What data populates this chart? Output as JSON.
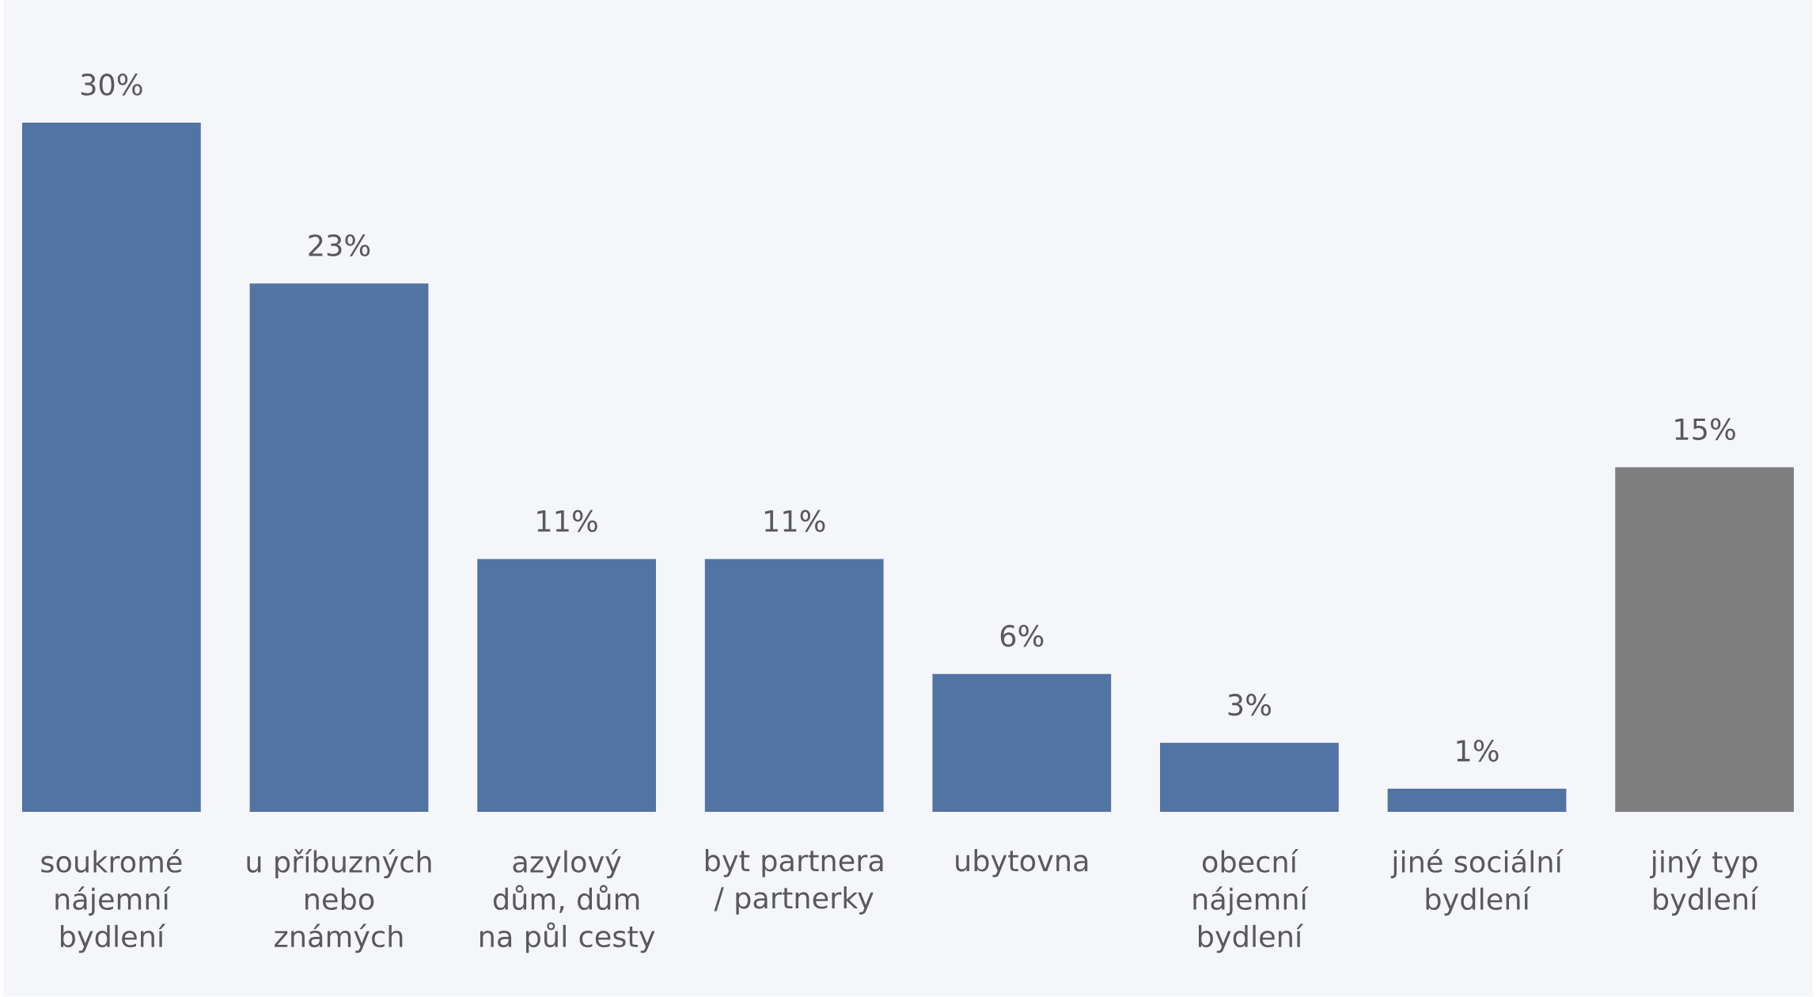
{
  "chart_data": {
    "type": "bar",
    "categories": [
      "soukromé nájemní bydlení",
      "u příbuzných nebo známých",
      "azylový dům, dům na půl cesty",
      "byt partnera / partnerky",
      "ubytovna",
      "obecní nájemní bydlení",
      "jiné sociální bydlení",
      "jiný typ bydlení"
    ],
    "values": [
      30,
      23,
      11,
      11,
      6,
      3,
      1,
      15
    ],
    "colors": [
      "#5274a3",
      "#5274a3",
      "#5274a3",
      "#5274a3",
      "#5274a3",
      "#5274a3",
      "#5274a3",
      "#7f7f7f"
    ],
    "value_labels": [
      "30%",
      "23%",
      "11%",
      "11%",
      "6%",
      "3%",
      "1%",
      "15%"
    ]
  }
}
